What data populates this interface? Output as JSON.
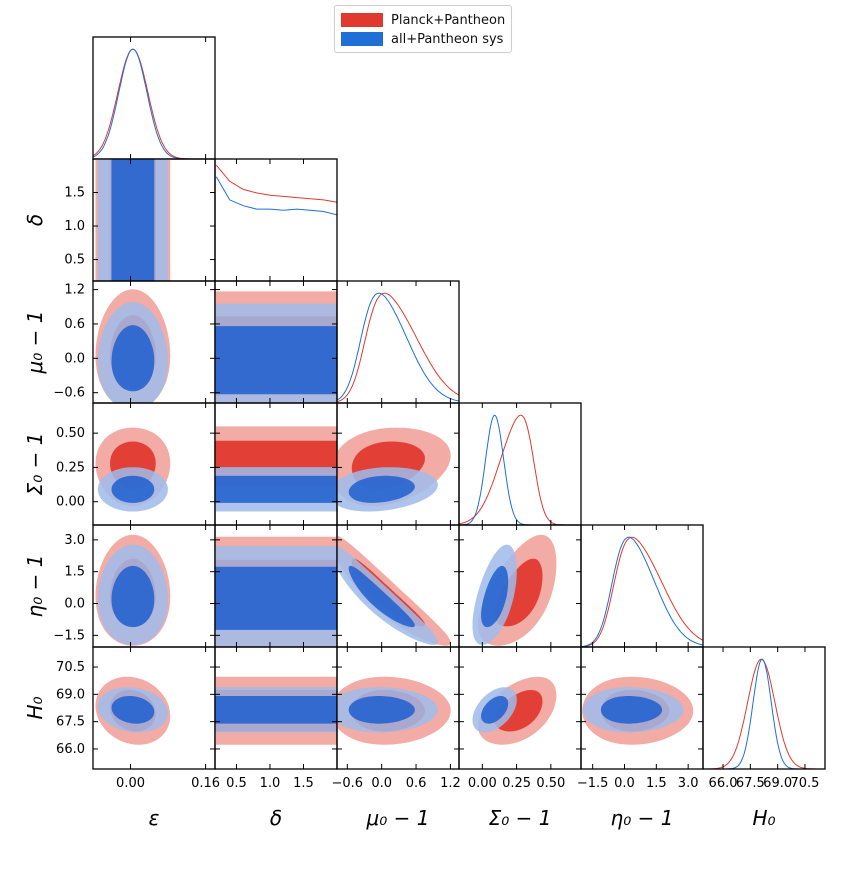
{
  "chart_data": {
    "type": "corner",
    "title": "",
    "parameters": [
      "ε",
      "δ",
      "μ₀ − 1",
      "Σ₀ − 1",
      "η₀ − 1",
      "H₀"
    ],
    "ranges": [
      [
        -0.08,
        0.18
      ],
      [
        0.18,
        2.0
      ],
      [
        -0.78,
        1.35
      ],
      [
        -0.17,
        0.72
      ],
      [
        -2.05,
        3.7
      ],
      [
        64.9,
        71.6
      ]
    ],
    "xtick_values": [
      [
        0.0,
        0.16
      ],
      [
        0.5,
        1.0,
        1.5
      ],
      [
        -0.6,
        0.0,
        0.6,
        1.2
      ],
      [
        0.0,
        0.25,
        0.5
      ],
      [
        -1.5,
        0.0,
        1.5,
        3.0
      ],
      [
        66.0,
        67.5,
        69.0,
        70.5
      ]
    ],
    "xtick_labels": [
      [
        "0.00",
        "0.16"
      ],
      [
        "0.5",
        "1.0",
        "1.5"
      ],
      [
        "−0.6",
        "0.0",
        "0.6",
        "1.2"
      ],
      [
        "0.00",
        "0.25",
        "0.50"
      ],
      [
        "−1.5",
        "0.0",
        "1.5",
        "3.0"
      ],
      [
        "66.0",
        "67.5",
        "69.0",
        "70.5"
      ]
    ],
    "ytick_values": [
      [],
      [
        0.5,
        1.0,
        1.5
      ],
      [
        -0.6,
        0.0,
        0.6,
        1.2
      ],
      [
        0.0,
        0.25,
        0.5
      ],
      [
        -1.5,
        0.0,
        1.5,
        3.0
      ],
      [
        66.0,
        67.5,
        69.0,
        70.5
      ]
    ],
    "ytick_labels": [
      [],
      [
        "0.5",
        "1.0",
        "1.5"
      ],
      [
        "−0.6",
        "0.0",
        "0.6",
        "1.2"
      ],
      [
        "0.00",
        "0.25",
        "0.50"
      ],
      [
        "−1.5",
        "0.0",
        "1.5",
        "3.0"
      ],
      [
        "66.0",
        "67.5",
        "69.0",
        "70.5"
      ]
    ],
    "contour_levels": [
      "68%",
      "95%"
    ],
    "legend_position": "top-center",
    "series": [
      {
        "name": "Planck+Pantheon",
        "color": "#e03a2f",
        "inner_color": "#e03a2f",
        "outer_color": "#f2a7a0",
        "mean": [
          0.005,
          1.0,
          0.05,
          0.28,
          0.35,
          68.1
        ],
        "sigma": [
          0.032,
          0.9,
          0.42,
          0.115,
          1.05,
          0.75
        ],
        "skew": [
          0.0,
          0.0,
          0.35,
          -0.3,
          0.35,
          0.0
        ],
        "bounded_prior_lower": [
          false,
          true,
          false,
          false,
          false,
          false
        ],
        "delta_curve": {
          "x": [
            0.2,
            0.4,
            0.6,
            0.8,
            1.0,
            1.2,
            1.4,
            1.6,
            1.8,
            2.0
          ],
          "y": [
            1.0,
            0.86,
            0.79,
            0.76,
            0.74,
            0.73,
            0.72,
            0.71,
            0.7,
            0.68
          ]
        }
      },
      {
        "name": "all+Pantheon sys",
        "color": "#1f6fd6",
        "inner_color": "#1f5fcf",
        "outer_color": "#9fbbea",
        "mean": [
          0.005,
          1.0,
          -0.05,
          0.09,
          0.2,
          68.15
        ],
        "sigma": [
          0.03,
          0.9,
          0.38,
          0.065,
          0.95,
          0.5
        ],
        "skew": [
          0.0,
          0.0,
          0.3,
          0.0,
          0.3,
          0.0
        ],
        "bounded_prior_lower": [
          false,
          true,
          false,
          false,
          false,
          false
        ],
        "delta_curve": {
          "x": [
            0.2,
            0.4,
            0.6,
            0.8,
            1.0,
            1.2,
            1.4,
            1.6,
            1.8,
            2.0
          ],
          "y": [
            0.9,
            0.7,
            0.65,
            0.62,
            0.62,
            0.61,
            0.62,
            0.61,
            0.6,
            0.57
          ]
        }
      }
    ]
  }
}
